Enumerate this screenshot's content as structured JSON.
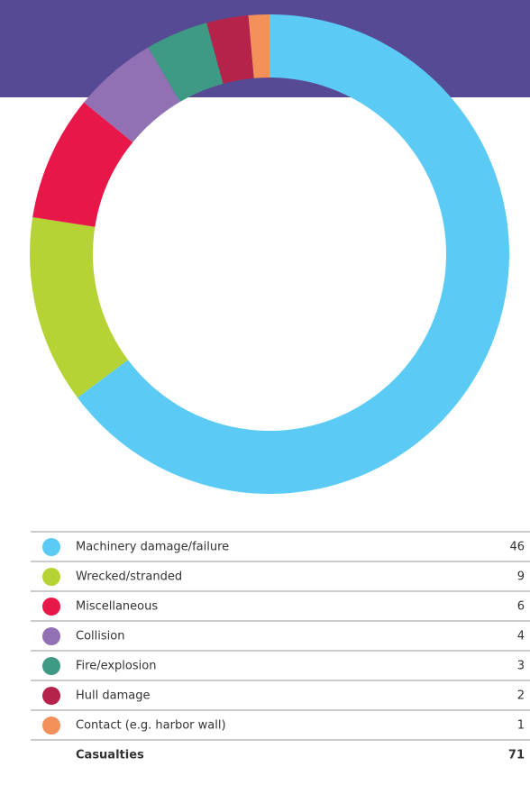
{
  "chart_data": {
    "type": "donut",
    "categories": [
      "Machinery damage/failure",
      "Wrecked/stranded",
      "Miscellaneous",
      "Collision",
      "Fire/explosion",
      "Hull damage",
      "Contact (e.g. harbor wall)"
    ],
    "values": [
      46,
      9,
      6,
      4,
      3,
      2,
      1
    ],
    "colors": [
      "#5bcbf5",
      "#b5d334",
      "#e8174a",
      "#9270b4",
      "#3f9a85",
      "#b5234a",
      "#f4915a"
    ],
    "total_label": "Casualties",
    "total": 71
  }
}
